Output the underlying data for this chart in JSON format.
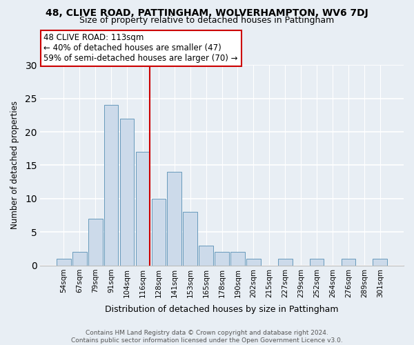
{
  "title1": "48, CLIVE ROAD, PATTINGHAM, WOLVERHAMPTON, WV6 7DJ",
  "title2": "Size of property relative to detached houses in Pattingham",
  "xlabel": "Distribution of detached houses by size in Pattingham",
  "ylabel": "Number of detached properties",
  "bar_labels": [
    "54sqm",
    "67sqm",
    "79sqm",
    "91sqm",
    "104sqm",
    "116sqm",
    "128sqm",
    "141sqm",
    "153sqm",
    "165sqm",
    "178sqm",
    "190sqm",
    "202sqm",
    "215sqm",
    "227sqm",
    "239sqm",
    "252sqm",
    "264sqm",
    "276sqm",
    "289sqm",
    "301sqm"
  ],
  "bar_values": [
    1,
    2,
    7,
    24,
    22,
    17,
    10,
    14,
    8,
    3,
    2,
    2,
    1,
    0,
    1,
    0,
    1,
    0,
    1,
    0,
    1
  ],
  "bar_color": "#ccdaea",
  "bar_edge_color": "#6699bb",
  "highlight_line_index": 5,
  "highlight_line_color": "#cc0000",
  "annotation_text": "48 CLIVE ROAD: 113sqm\n← 40% of detached houses are smaller (47)\n59% of semi-detached houses are larger (70) →",
  "annotation_box_color": "#ffffff",
  "annotation_box_edge": "#cc0000",
  "ylim": [
    0,
    30
  ],
  "yticks": [
    0,
    5,
    10,
    15,
    20,
    25,
    30
  ],
  "footer1": "Contains HM Land Registry data © Crown copyright and database right 2024.",
  "footer2": "Contains public sector information licensed under the Open Government Licence v3.0.",
  "bg_color": "#e8eef4",
  "grid_color": "#ffffff",
  "title1_fontsize": 10,
  "title2_fontsize": 9
}
